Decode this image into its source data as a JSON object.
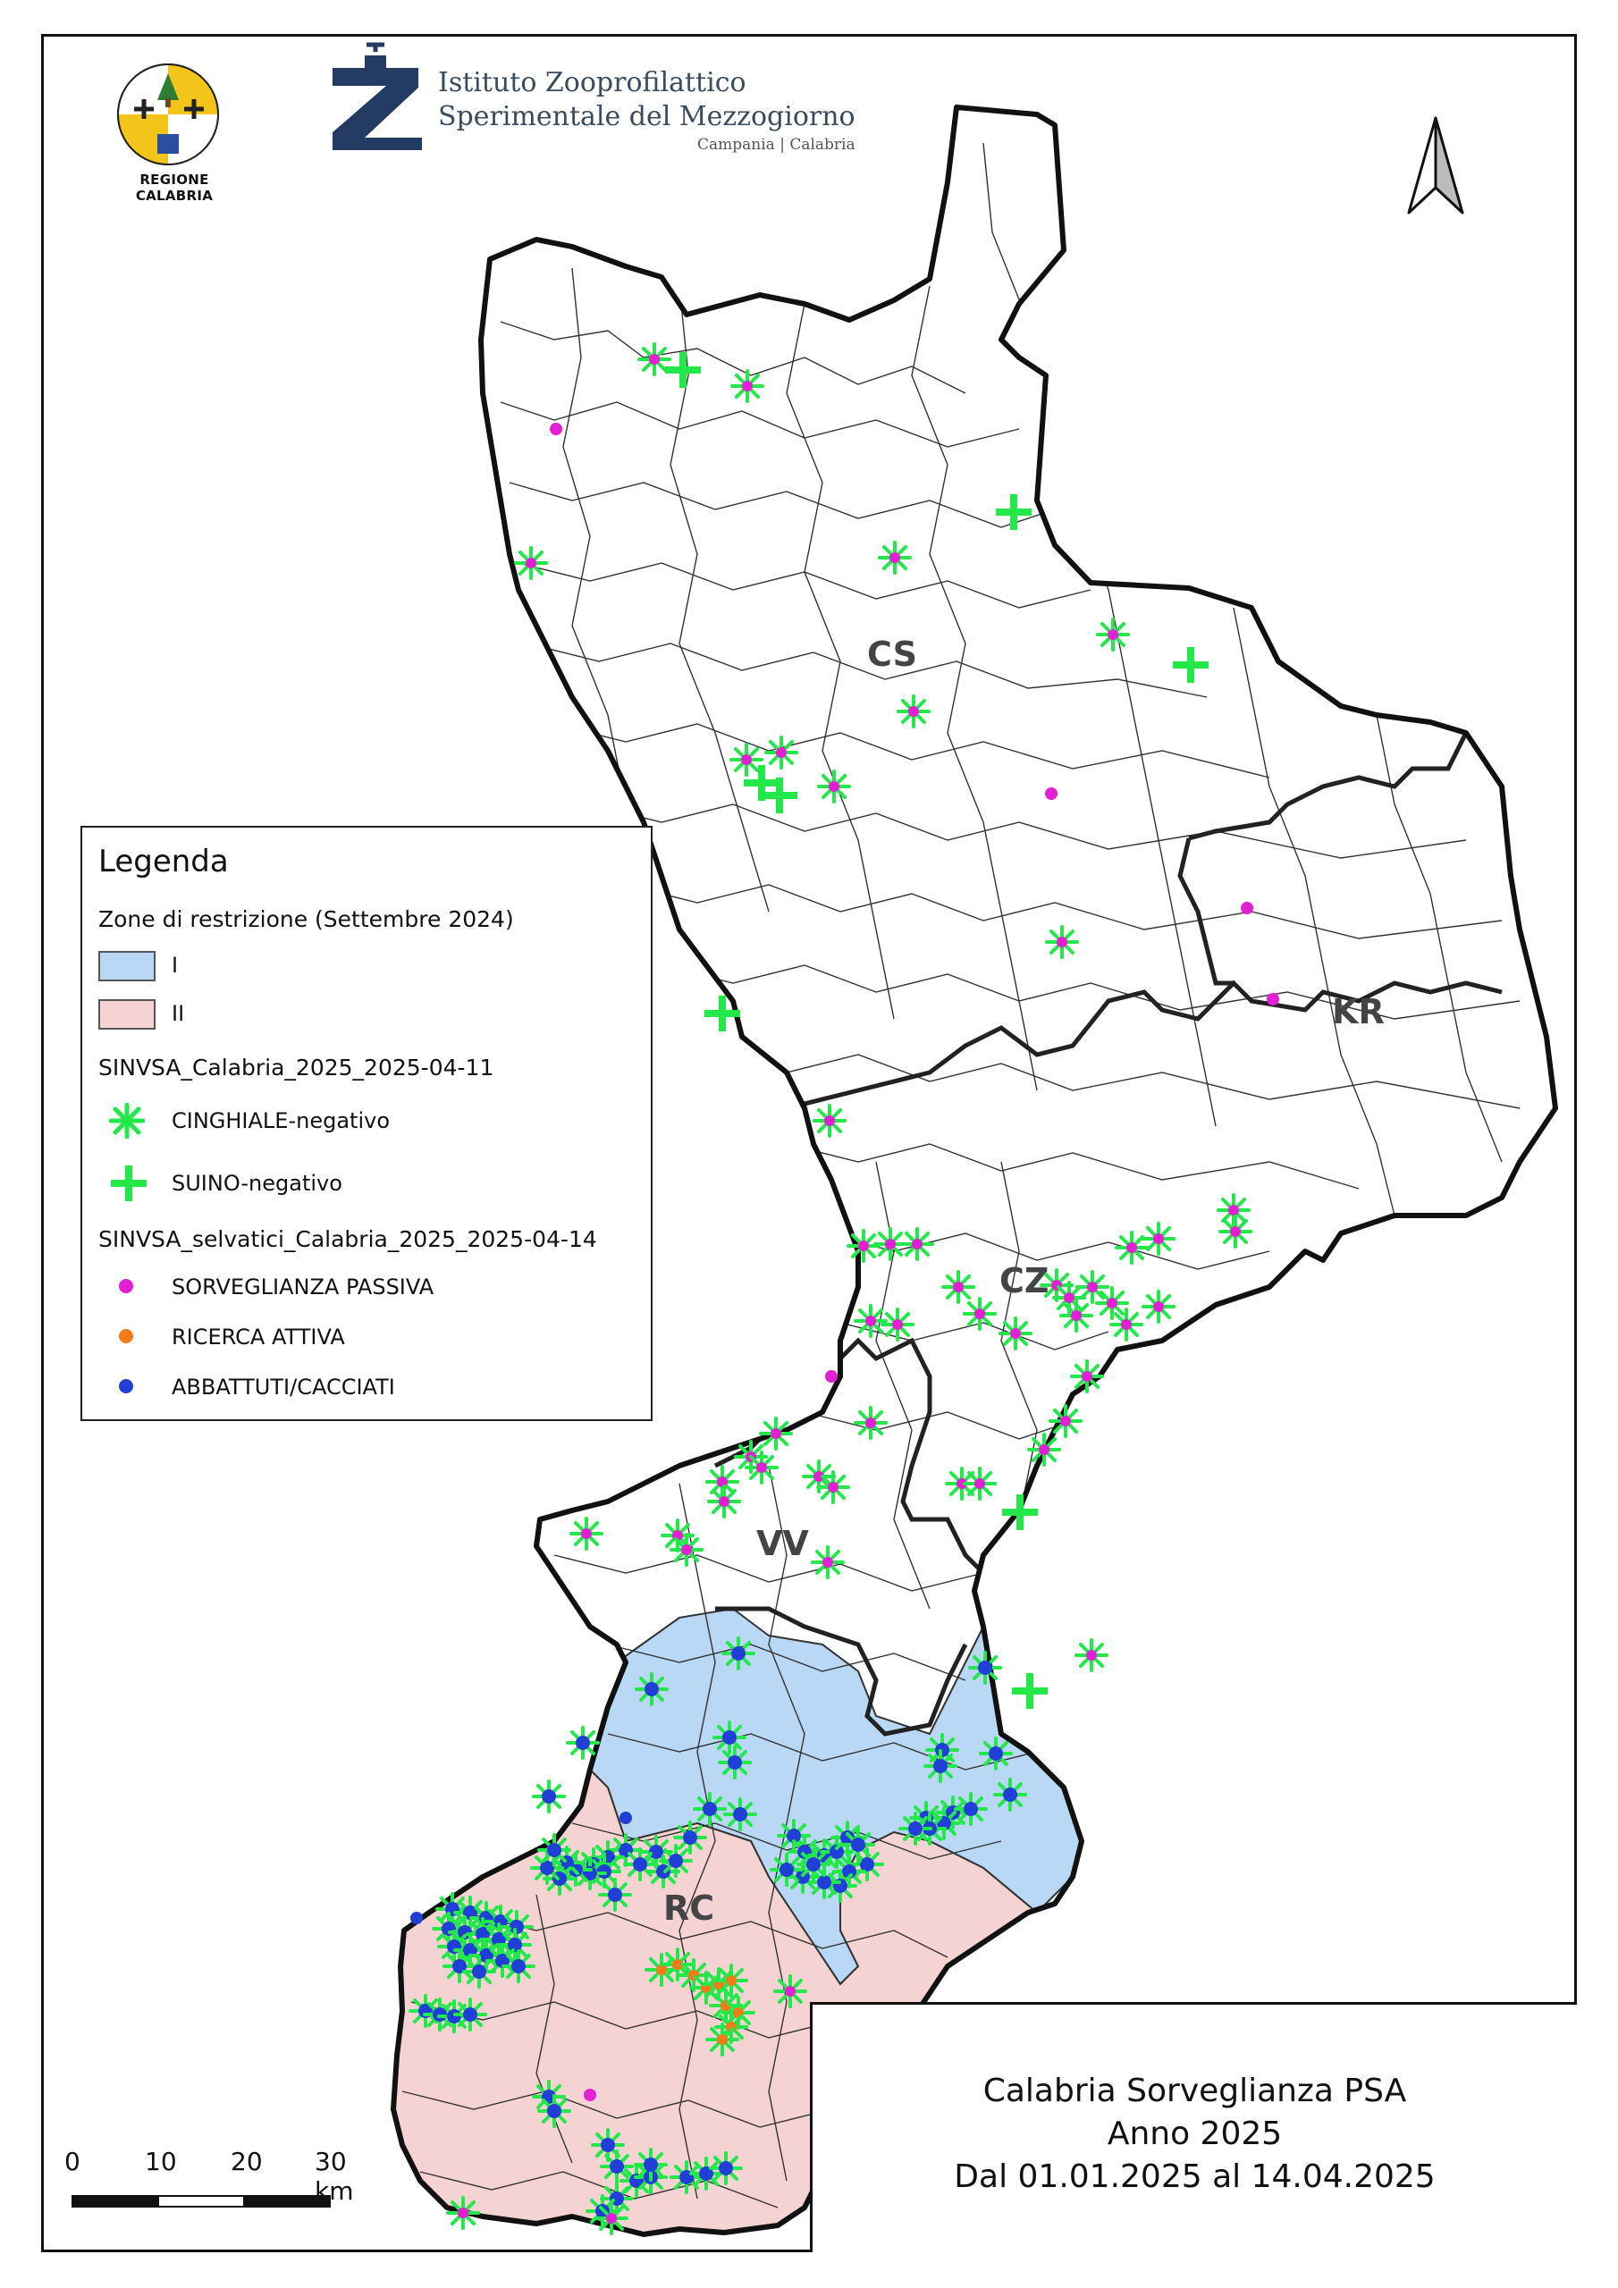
{
  "header": {
    "region_logo_caption": "REGIONE CALABRIA",
    "institute_line1": "Istituto Zooprofilattico",
    "institute_line2": "Sperimentale del Mezzogiorno",
    "institute_line3": "Campania | Calabria"
  },
  "legend": {
    "title": "Legenda",
    "zones_heading": "Zone di restrizione (Settembre 2024)",
    "zones": [
      {
        "label": "I",
        "color": "#b8d8f6"
      },
      {
        "label": "II",
        "color": "#f6d3d3"
      }
    ],
    "layer1_heading": "SINVSA_Calabria_2025_2025-04-11",
    "layer1_items": [
      {
        "label": "CINGHIALE-negativo",
        "icon": "asterisk-icon",
        "color": "#22e84a"
      },
      {
        "label": "SUINO-negativo",
        "icon": "plus-icon",
        "color": "#22e84a"
      }
    ],
    "layer2_heading": "SINVSA_selvatici_Calabria_2025_2025-04-14",
    "layer2_items": [
      {
        "label": "SORVEGLIANZA PASSIVA",
        "icon": "dot-icon",
        "color": "#e21fd3"
      },
      {
        "label": "RICERCA ATTIVA",
        "icon": "dot-icon",
        "color": "#f07c18"
      },
      {
        "label": "ABBATTUTI/CACCIATI",
        "icon": "dot-icon",
        "color": "#1f3fd6"
      }
    ]
  },
  "provinces": [
    "CS",
    "KR",
    "CZ",
    "VV",
    "RC"
  ],
  "scale": {
    "ticks": [
      "0",
      "10",
      "20",
      "30 km"
    ]
  },
  "title_box": {
    "line1": "Calabria Sorveglianza PSA",
    "line2": "Anno 2025",
    "line3": "Dal 01.01.2025 al 14.04.2025"
  }
}
